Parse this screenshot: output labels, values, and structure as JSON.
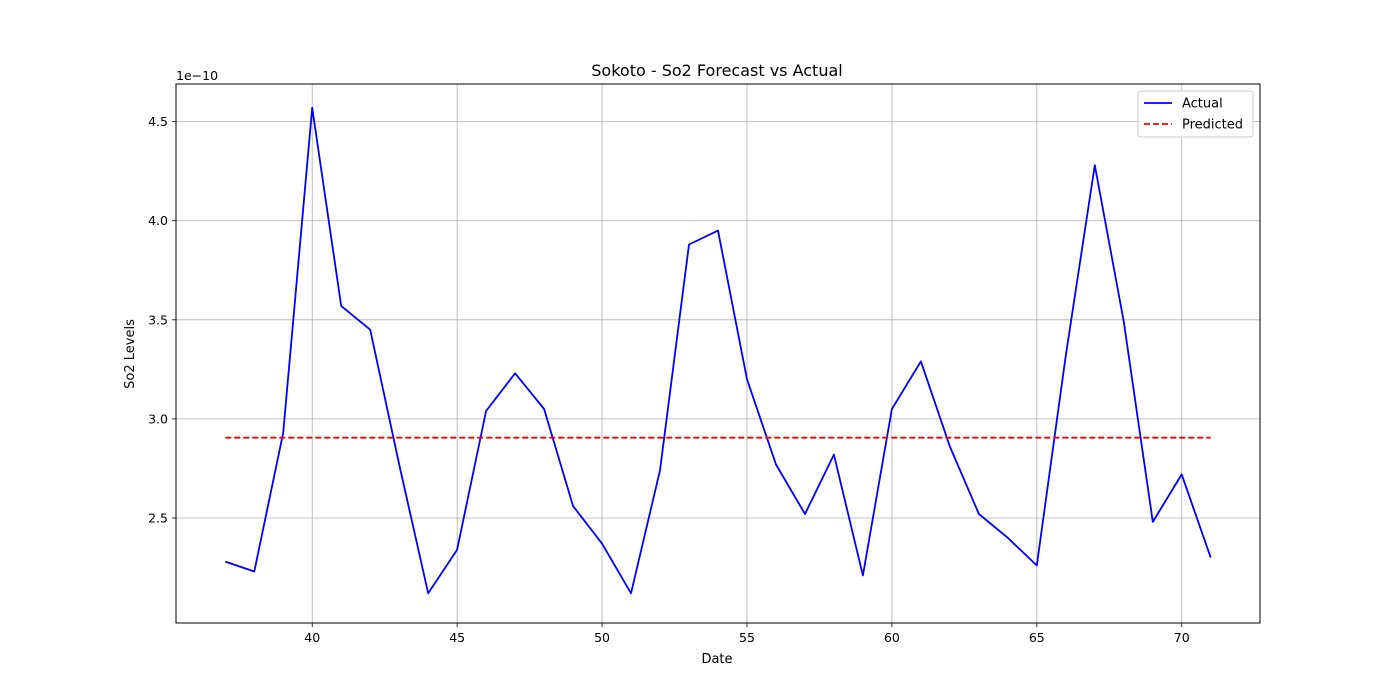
{
  "chart_data": {
    "type": "line",
    "title": "Sokoto - So2 Forecast vs Actual",
    "xlabel": "Date",
    "ylabel": "So2 Levels",
    "y_offset_text": "1e−10",
    "xlim": [
      35.3,
      72.7
    ],
    "ylim": [
      1.97,
      4.69
    ],
    "x_ticks": [
      40,
      45,
      50,
      55,
      60,
      65,
      70
    ],
    "y_ticks": [
      2.5,
      3.0,
      3.5,
      4.0,
      4.5
    ],
    "y_tick_labels": [
      "2.5",
      "3.0",
      "3.5",
      "4.0",
      "4.5"
    ],
    "grid": true,
    "legend_position": "top-right",
    "series": [
      {
        "name": "Actual",
        "color": "#0000ff",
        "style": "solid",
        "x": [
          37,
          38,
          39,
          40,
          41,
          42,
          43,
          44,
          45,
          46,
          47,
          48,
          49,
          50,
          51,
          52,
          53,
          54,
          55,
          56,
          57,
          58,
          59,
          60,
          61,
          62,
          63,
          64,
          65,
          66,
          67,
          68,
          69,
          70,
          71
        ],
        "y": [
          2.28,
          2.23,
          2.93,
          4.57,
          3.57,
          3.45,
          2.77,
          2.12,
          2.34,
          3.04,
          3.23,
          3.05,
          2.56,
          2.37,
          2.12,
          2.74,
          3.88,
          3.95,
          3.2,
          2.77,
          2.52,
          2.82,
          2.21,
          3.05,
          3.29,
          2.86,
          2.52,
          2.4,
          2.26,
          3.32,
          4.28,
          3.49,
          2.48,
          2.72,
          2.3
        ]
      },
      {
        "name": "Predicted",
        "color": "#ff0000",
        "style": "dashed",
        "x": [
          37,
          71
        ],
        "y": [
          2.905,
          2.905
        ]
      }
    ]
  }
}
